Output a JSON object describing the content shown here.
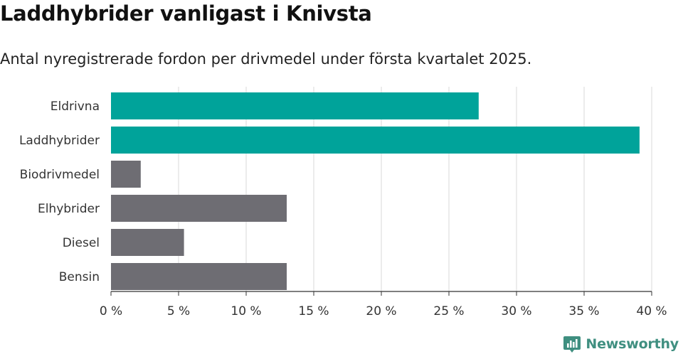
{
  "header": {
    "title": "Laddhybrider vanligast i Knivsta",
    "subtitle": "Antal nyregistrerade fordon per drivmedel under första kvartalet 2025."
  },
  "brand": {
    "name": "Newsworthy",
    "icon": "newsworthy-logo-icon",
    "color": "#3f8f80"
  },
  "chart_data": {
    "type": "bar",
    "orientation": "horizontal",
    "categories": [
      "Eldrivna",
      "Laddhybrider",
      "Biodrivmedel",
      "Elhybrider",
      "Diesel",
      "Bensin"
    ],
    "values": [
      27.2,
      39.1,
      2.2,
      13.0,
      5.4,
      13.0
    ],
    "bar_colors": [
      "#00a39a",
      "#00a39a",
      "#6e6d73",
      "#6e6d73",
      "#6e6d73",
      "#6e6d73"
    ],
    "xlim": [
      0,
      40
    ],
    "xticks": [
      0,
      5,
      10,
      15,
      20,
      25,
      30,
      35,
      40
    ],
    "xtick_labels": [
      "0 %",
      "5 %",
      "10 %",
      "15 %",
      "20 %",
      "25 %",
      "30 %",
      "35 %",
      "40 %"
    ],
    "xlabel": "",
    "ylabel": "",
    "grid": "vertical",
    "legend": "none"
  }
}
